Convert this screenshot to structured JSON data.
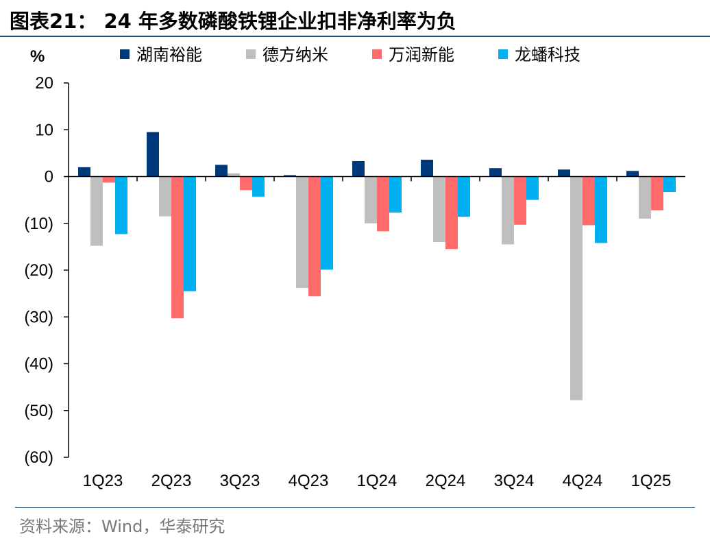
{
  "header": {
    "title": "图表21：  24 年多数磷酸铁锂企业扣非净利率为负"
  },
  "footer": {
    "source": "资料来源：Wind，华泰研究"
  },
  "chart_data": {
    "type": "bar",
    "title": "图表21：  24 年多数磷酸铁锂企业扣非净利率为负",
    "ylabel": "%",
    "xlabel": "",
    "ylim": [
      -60,
      20
    ],
    "yticks": [
      20,
      10,
      0,
      -10,
      -20,
      -30,
      -40,
      -50,
      -60
    ],
    "ytick_labels": [
      "20",
      "10",
      "0",
      "(10)",
      "(20)",
      "(30)",
      "(40)",
      "(50)",
      "(60)"
    ],
    "grid": false,
    "legend_position": "top",
    "categories": [
      "1Q23",
      "2Q23",
      "3Q23",
      "4Q23",
      "1Q24",
      "2Q24",
      "3Q24",
      "4Q24",
      "1Q25"
    ],
    "series": [
      {
        "name": "湖南裕能",
        "color": "#003a7a",
        "values": [
          2.0,
          9.5,
          2.5,
          0.3,
          3.3,
          3.6,
          1.8,
          1.5,
          1.2
        ]
      },
      {
        "name": "德方纳米",
        "color": "#bfbfbf",
        "values": [
          -14.8,
          -8.5,
          0.7,
          -23.8,
          -10.0,
          -14.0,
          -14.5,
          -47.8,
          -9.0
        ]
      },
      {
        "name": "万润新能",
        "color": "#ff6b6b",
        "values": [
          -1.3,
          -30.3,
          -2.9,
          -25.6,
          -11.7,
          -15.5,
          -10.3,
          -10.4,
          -7.2
        ]
      },
      {
        "name": "龙蟠科技",
        "color": "#00b0f0",
        "values": [
          -12.3,
          -24.5,
          -4.3,
          -19.9,
          -7.7,
          -8.6,
          -5.0,
          -14.2,
          -3.3
        ]
      }
    ]
  }
}
